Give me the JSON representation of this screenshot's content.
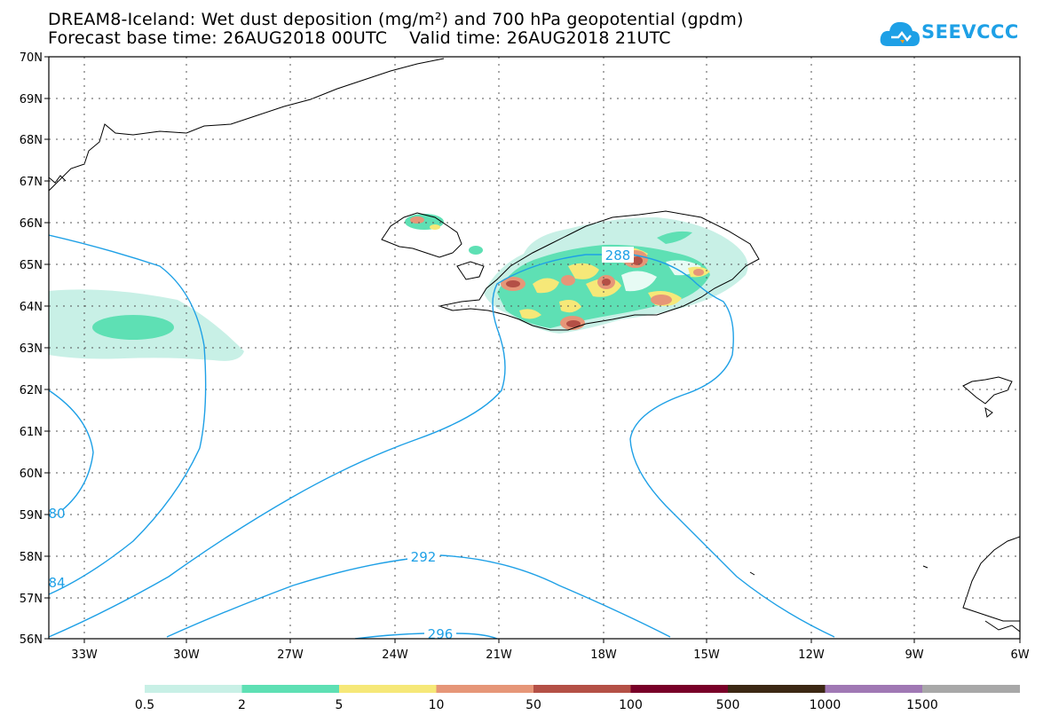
{
  "title_line1": "DREAM8-Iceland: Wet dust deposition (mg/m²) and 700 hPa geopotential (gpdm)",
  "title_line2": "Forecast base time: 26AUG2018 00UTC    Valid time: 26AUG2018 21UTC",
  "logo_text": "SEEVCCC",
  "colors": {
    "contour": "#1ea0e6",
    "coast": "#000000",
    "grid": "#555555"
  },
  "lat_labels": [
    "70N",
    "69N",
    "68N",
    "67N",
    "66N",
    "65N",
    "64N",
    "63N",
    "62N",
    "61N",
    "60N",
    "59N",
    "58N",
    "57N",
    "56N"
  ],
  "lon_labels": [
    "33W",
    "30W",
    "27W",
    "24W",
    "21W",
    "18W",
    "15W",
    "12W",
    "9W",
    "6W"
  ],
  "contour_labels": [
    "288",
    "292",
    "296",
    "80",
    "84"
  ],
  "colorbar": {
    "colors": [
      "#c8f0e6",
      "#5ee0b4",
      "#f6e878",
      "#e69678",
      "#b45046",
      "#780028",
      "#3c2814",
      "#a078b4",
      "#a8a8a8"
    ],
    "labels": [
      "0.5",
      "2",
      "5",
      "10",
      "50",
      "100",
      "500",
      "1000",
      "1500"
    ]
  }
}
